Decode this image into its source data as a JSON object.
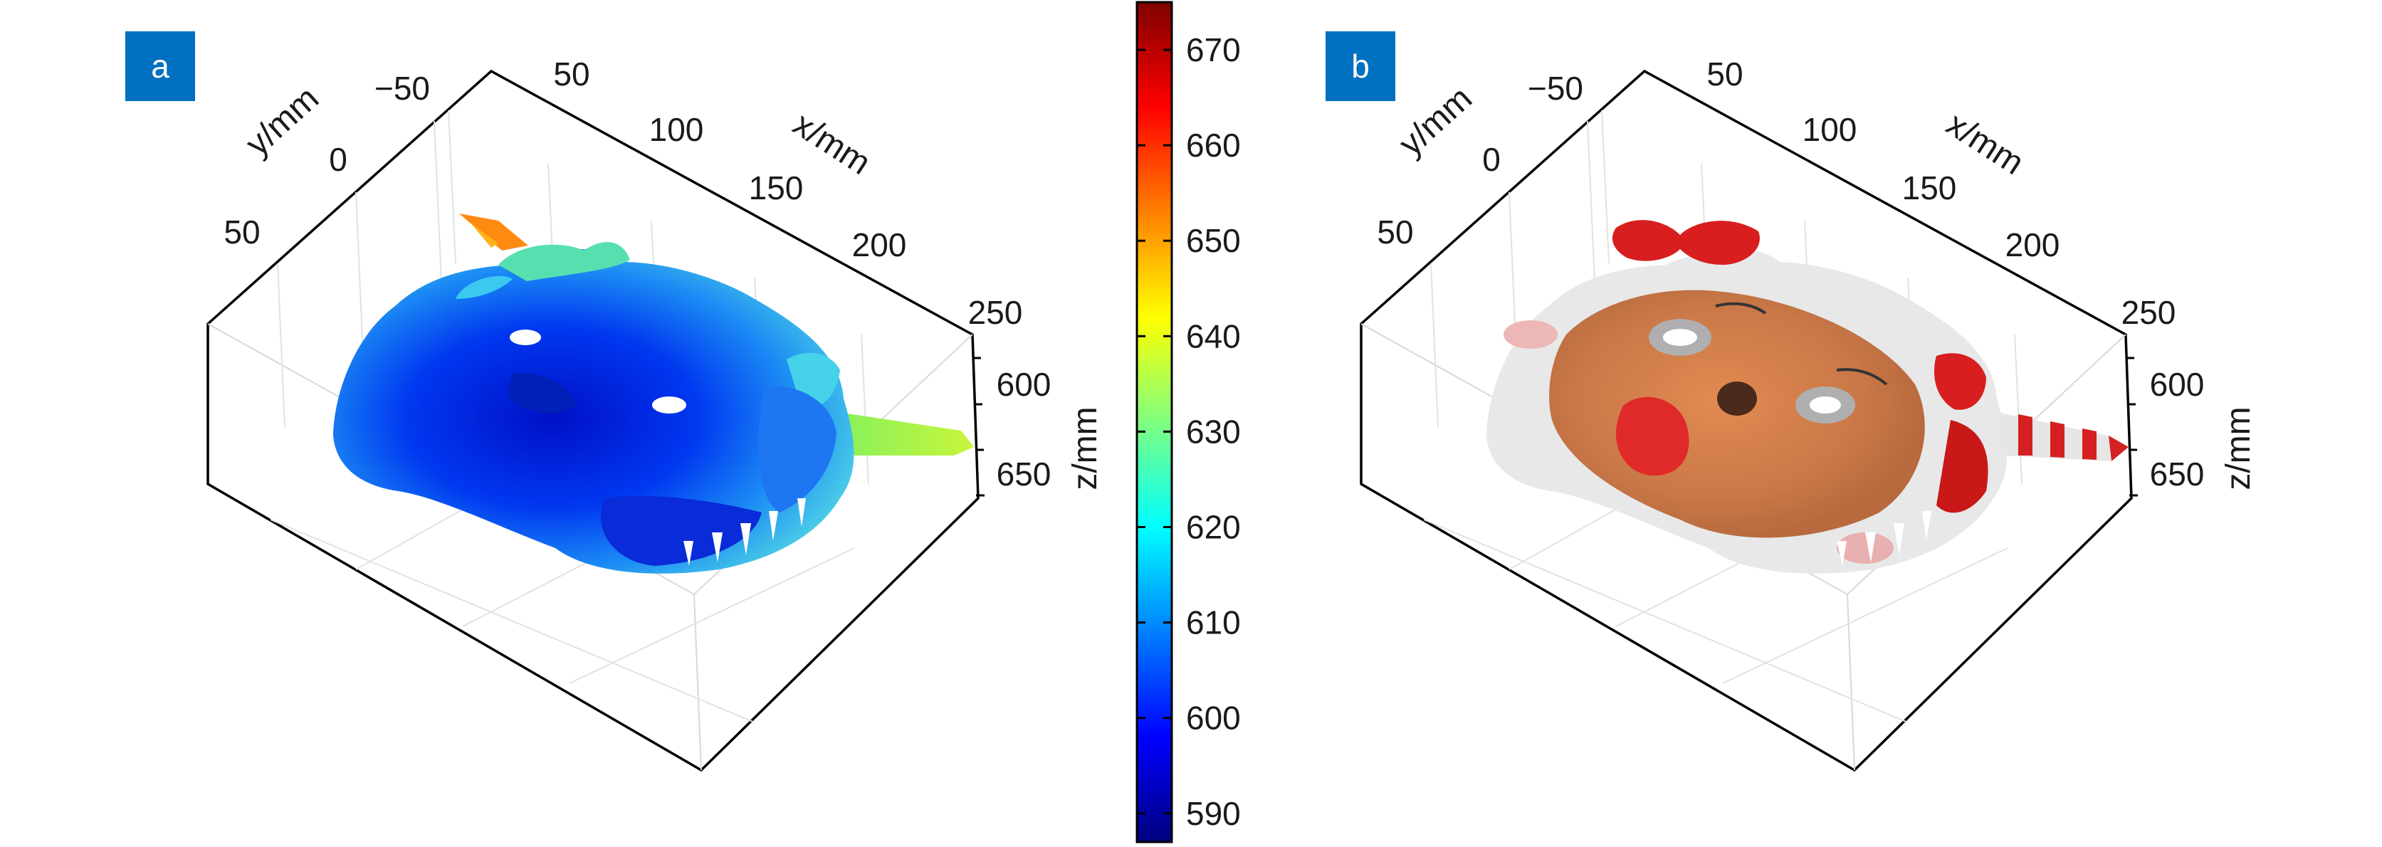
{
  "panels": [
    {
      "label": "a",
      "rendering": "height-colored point cloud"
    },
    {
      "label": "b",
      "rendering": "texture-colored point cloud"
    }
  ],
  "chart_data": {
    "type": "scatter",
    "projection": "3d",
    "x_axis": {
      "label": "x/mm",
      "ticks": [
        "50",
        "100",
        "150",
        "200",
        "250"
      ]
    },
    "y_axis": {
      "label": "y/mm",
      "ticks": [
        "−50",
        "0",
        "50"
      ]
    },
    "z_axis": {
      "label": "z/mm",
      "ticks": [
        "600",
        "650"
      ]
    },
    "colorbar": {
      "label": "",
      "range": [
        587,
        675
      ],
      "ticks": [
        "590",
        "600",
        "610",
        "620",
        "630",
        "640",
        "650",
        "660",
        "670"
      ],
      "colormap": "jet"
    }
  }
}
